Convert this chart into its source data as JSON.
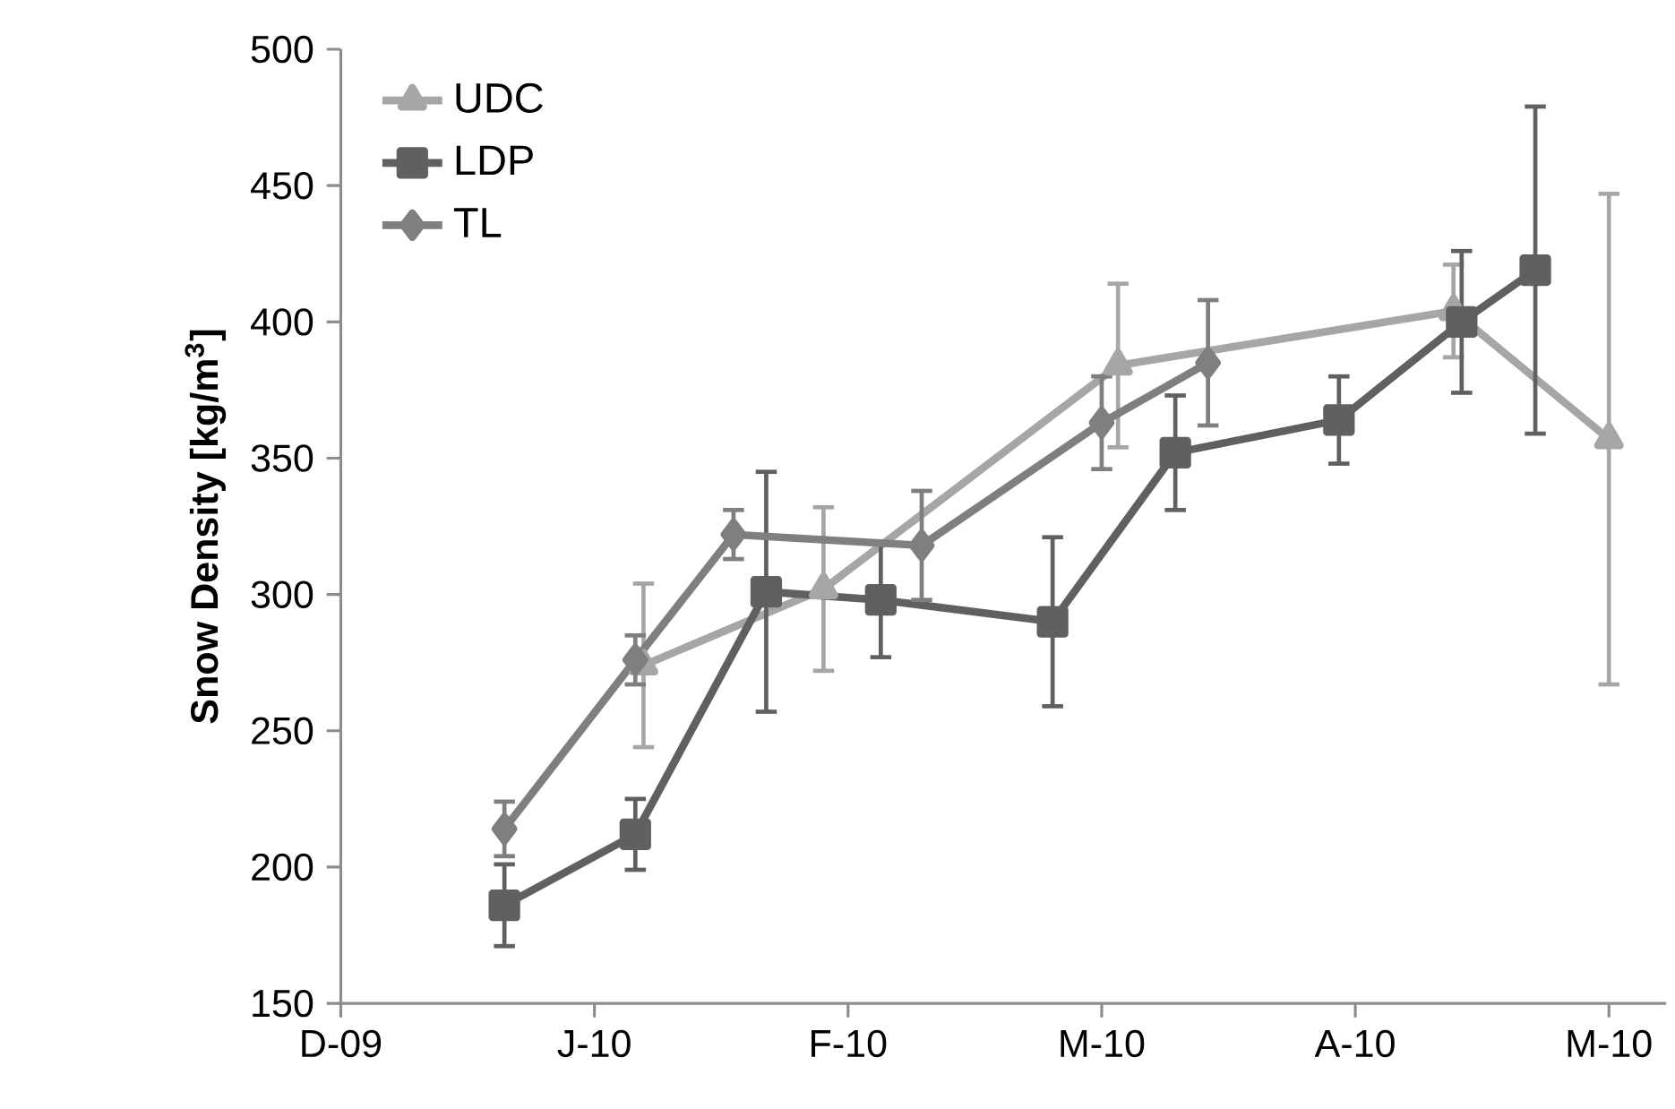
{
  "chart_data": {
    "type": "line",
    "ylabel": "Snow Density [kg/m$^{3}$]",
    "xlim": [
      "2009-12-01",
      "2010-05-12"
    ],
    "xticks": [
      {
        "value": "2009-12-01",
        "label": "D-09"
      },
      {
        "value": "2010-01-01",
        "label": "J-10"
      },
      {
        "value": "2010-02-01",
        "label": "F-10"
      },
      {
        "value": "2010-03-04",
        "label": "M-10"
      },
      {
        "value": "2010-04-04",
        "label": "A-10"
      },
      {
        "value": "2010-05-05",
        "label": "M-10"
      }
    ],
    "ylim": [
      150,
      500
    ],
    "yticks": [
      150,
      200,
      250,
      300,
      350,
      400,
      450,
      500
    ],
    "legend": "top left",
    "grid": false,
    "line_style": "solid",
    "series": [
      {
        "name": "UDC",
        "color": "#a6a6a6",
        "marker": "triangle",
        "x": [
          "2010-01-07",
          "2010-01-29",
          "2010-03-06",
          "2010-04-16",
          "2010-05-05"
        ],
        "values": [
          274,
          302,
          384,
          404,
          357
        ],
        "errors": [
          30,
          30,
          30,
          17,
          90
        ]
      },
      {
        "name": "LDP",
        "color": "#606060",
        "marker": "square",
        "x": [
          "2009-12-21",
          "2010-01-06",
          "2010-01-22",
          "2010-02-05",
          "2010-02-26",
          "2010-03-13",
          "2010-04-02",
          "2010-04-17",
          "2010-04-26"
        ],
        "values": [
          186,
          212,
          301,
          298,
          290,
          352,
          364,
          400,
          419
        ],
        "errors": [
          15,
          13,
          44,
          21,
          31,
          21,
          16,
          26,
          60
        ]
      },
      {
        "name": "TL",
        "color": "#7f7f7f",
        "marker": "diamond",
        "x": [
          "2009-12-21",
          "2010-01-06",
          "2010-01-18",
          "2010-02-10",
          "2010-03-04",
          "2010-03-17"
        ],
        "values": [
          214,
          276,
          322,
          318,
          363,
          385
        ],
        "errors": [
          10,
          9,
          9,
          20,
          17,
          23
        ]
      }
    ]
  }
}
